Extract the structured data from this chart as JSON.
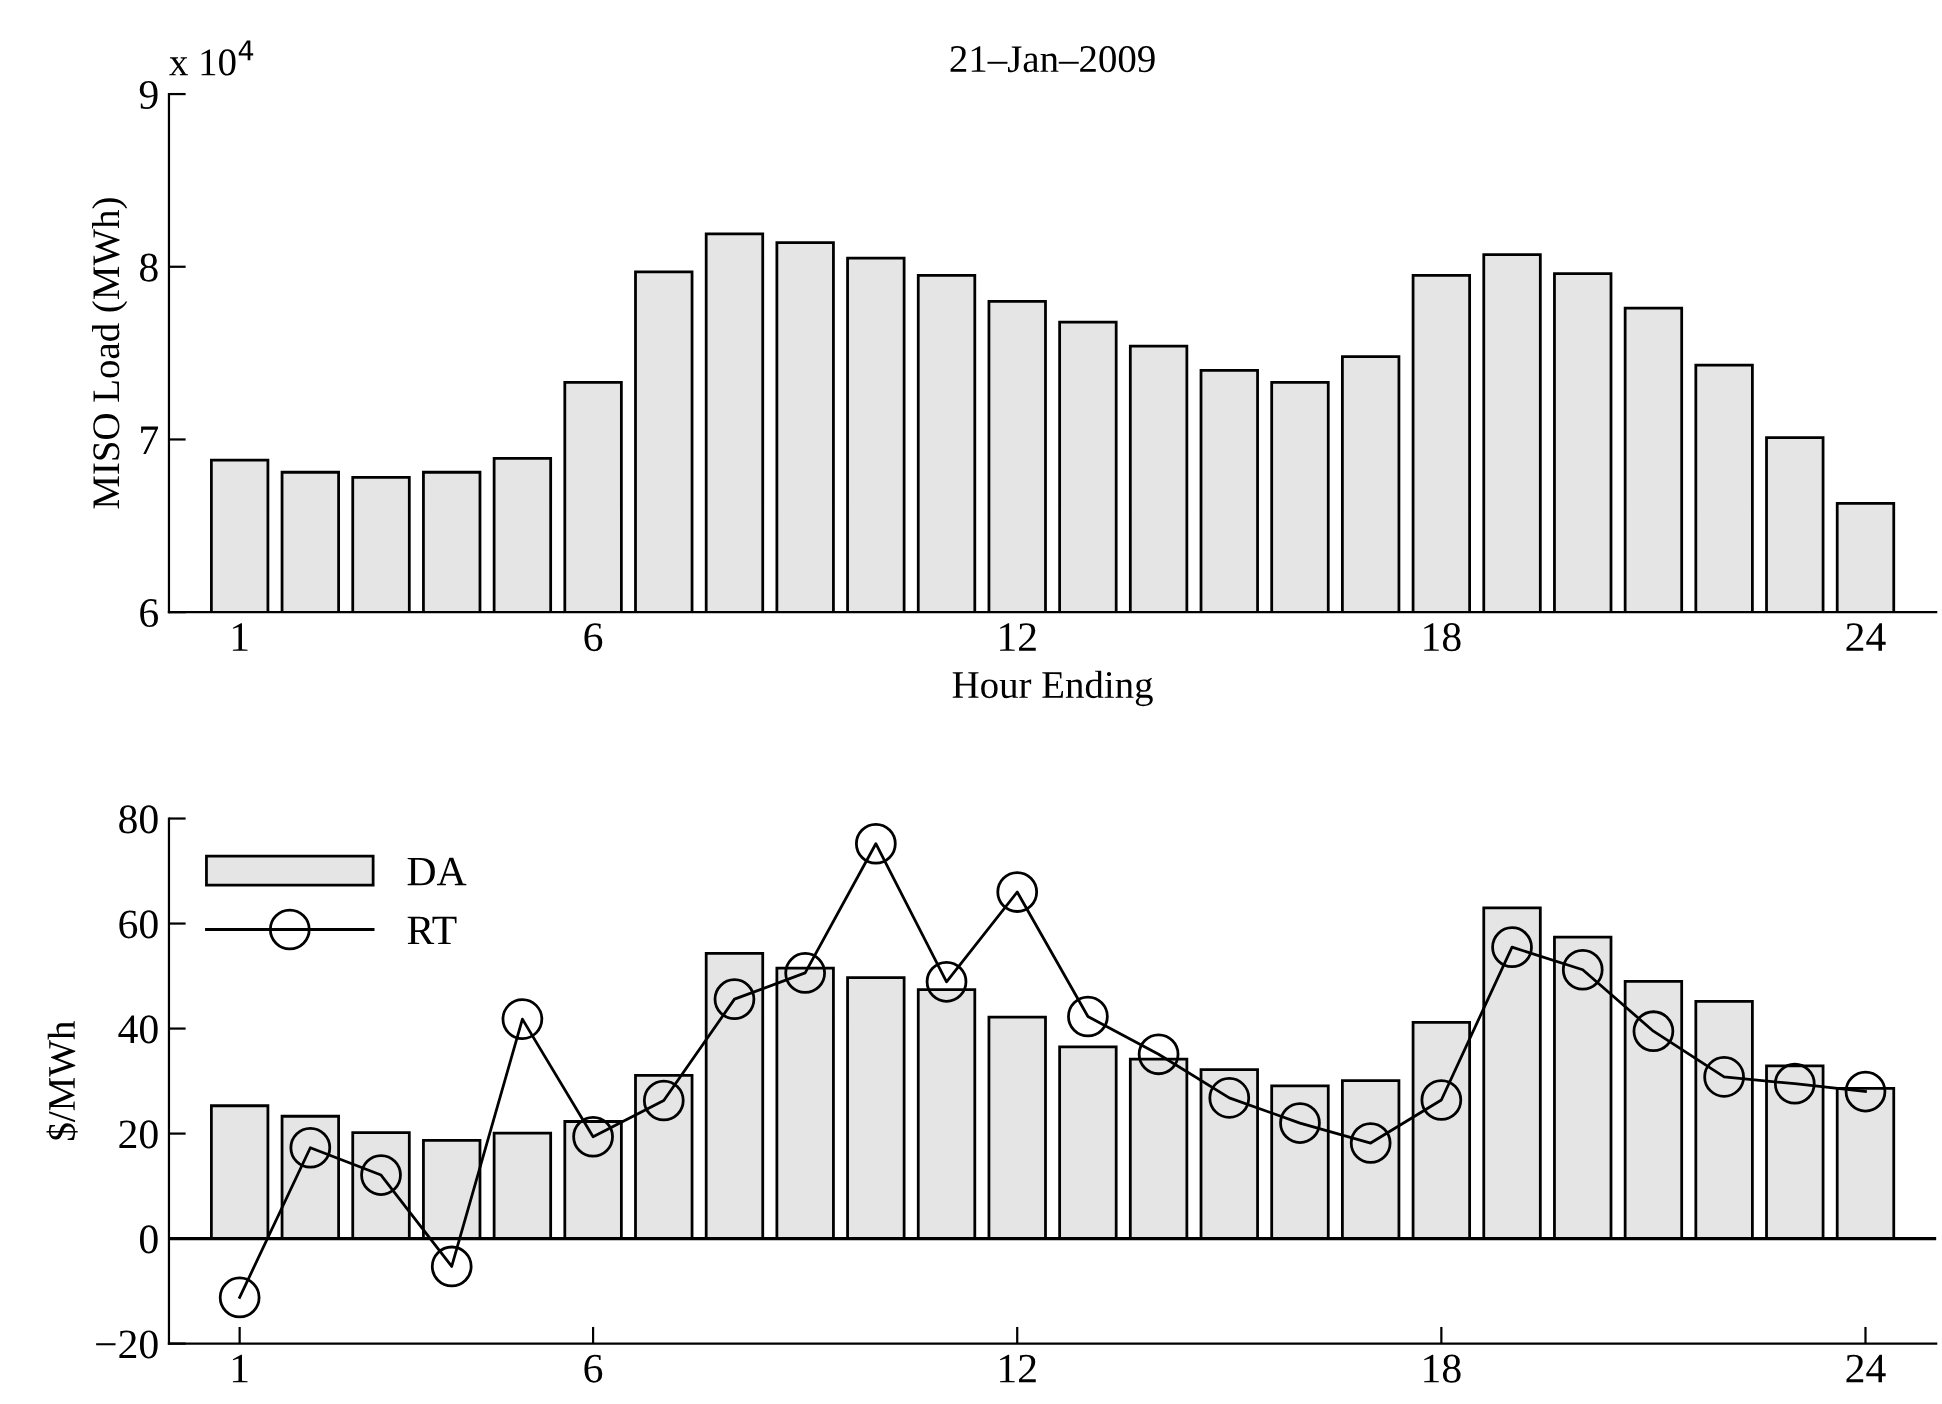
{
  "chart_data": [
    {
      "type": "bar",
      "title": "21–Jan–2009",
      "xlabel": "Hour Ending",
      "ylabel": "MISO Load (MWh)",
      "annotations": [
        "x 10$^{4}$"
      ],
      "x": [
        1,
        2,
        3,
        4,
        5,
        6,
        7,
        8,
        9,
        10,
        11,
        12,
        13,
        14,
        15,
        16,
        17,
        18,
        19,
        20,
        21,
        22,
        23,
        24
      ],
      "series": [
        {
          "color": "#e5e5e5",
          "values": [
            6.88,
            6.81,
            6.78,
            6.81,
            6.89,
            7.33,
            7.97,
            8.19,
            8.14,
            8.05,
            7.95,
            7.8,
            7.68,
            7.54,
            7.4,
            7.33,
            7.48,
            7.95,
            8.07,
            7.96,
            7.76,
            7.43,
            7.01,
            6.63
          ]
        }
      ],
      "xlim": [
        0,
        25
      ],
      "xticks": [
        1,
        6,
        12,
        18,
        24
      ],
      "ylim": [
        6,
        9
      ],
      "yticks": [
        6,
        7,
        8,
        9
      ],
      "grid": false,
      "legend": false
    },
    {
      "type": "bar",
      "ylabel": "$/MWh",
      "x": [
        1,
        2,
        3,
        4,
        5,
        6,
        7,
        8,
        9,
        10,
        11,
        12,
        13,
        14,
        15,
        16,
        17,
        18,
        19,
        20,
        21,
        22,
        23,
        24
      ],
      "series": [
        {
          "name": "DA",
          "color": "#e5e5e5",
          "values": [
            25.3,
            23.3,
            20.2,
            18.7,
            20.1,
            22.3,
            31.1,
            54.3,
            51.5,
            49.7,
            47.4,
            42.2,
            36.5,
            34.2,
            32.2,
            29.1,
            30.1,
            41.2,
            63.0,
            57.4,
            49.0,
            45.2,
            32.9,
            28.6
          ]
        },
        {
          "type": "line",
          "name": "RT",
          "color": "#000000",
          "marker": "circle",
          "line_style": "solid",
          "values": [
            -11.2,
            17.3,
            12.1,
            -5.3,
            41.8,
            19.4,
            26.3,
            45.6,
            50.6,
            75.2,
            48.9,
            66.0,
            42.3,
            35.1,
            26.8,
            22.0,
            18.2,
            26.4,
            55.5,
            51.2,
            39.5,
            30.8,
            29.5,
            28.0
          ]
        }
      ],
      "ref_lines": [
        {
          "axis": "y",
          "value": 0,
          "color": "#000000",
          "line_style": "solid"
        }
      ],
      "xlim": [
        0,
        25
      ],
      "xticks": [
        1,
        6,
        12,
        18,
        24
      ],
      "ylim": [
        -20,
        80
      ],
      "yticks": [
        {
          "value": -20,
          "label": "−20"
        },
        0,
        20,
        40,
        60,
        80
      ],
      "grid": false,
      "legend": "top left"
    }
  ]
}
